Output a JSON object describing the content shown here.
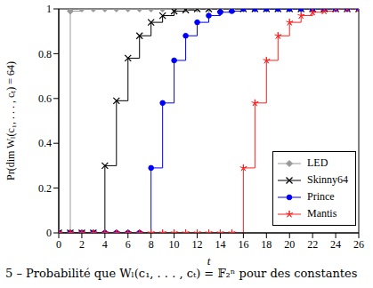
{
  "chart_data": {
    "type": "step",
    "x_label": "t",
    "y_label": "Pr(dim Wₗ(c₁, . . . , cₜ) = 64)",
    "annotations": [
      "5 – Probabilité que Wₗ(c₁, . . . , cₜ) = 𝔽₂ⁿ pour des constantes"
    ],
    "x": [
      0,
      1,
      2,
      3,
      4,
      5,
      6,
      7,
      8,
      9,
      10,
      11,
      12,
      13,
      14,
      15,
      16,
      17,
      18,
      19,
      20,
      21,
      22,
      23,
      24,
      25,
      26
    ],
    "series": [
      {
        "name": "LED",
        "color": "#999999",
        "marker": "diamond",
        "values": [
          0,
          0.99,
          1,
          1,
          1,
          1,
          1,
          1,
          1,
          1,
          1,
          1,
          1,
          1,
          1,
          1,
          1,
          1,
          1,
          1,
          1,
          1,
          1,
          1,
          1,
          1,
          1
        ]
      },
      {
        "name": "Skinny64",
        "color": "#000000",
        "marker": "x",
        "values": [
          0,
          0,
          0,
          0,
          0.3,
          0.59,
          0.78,
          0.88,
          0.94,
          0.97,
          0.99,
          0.995,
          1,
          1,
          1,
          1,
          1,
          1,
          1,
          1,
          1,
          1,
          1,
          1,
          1,
          1,
          1
        ]
      },
      {
        "name": "Prince",
        "color": "#0000ff",
        "marker": "circle",
        "values": [
          0,
          0,
          0,
          0,
          0,
          0,
          0,
          0,
          0.29,
          0.58,
          0.77,
          0.88,
          0.94,
          0.97,
          0.985,
          0.99,
          1,
          1,
          1,
          1,
          1,
          1,
          1,
          1,
          1,
          1,
          1
        ]
      },
      {
        "name": "Mantis",
        "color": "#ff2020",
        "marker": "star",
        "values": [
          0,
          0,
          0,
          0,
          0,
          0,
          0,
          0,
          0,
          0,
          0,
          0,
          0,
          0,
          0,
          0,
          0.29,
          0.58,
          0.77,
          0.88,
          0.94,
          0.97,
          0.985,
          0.99,
          1,
          1,
          1
        ]
      }
    ],
    "xlim": [
      0,
      26
    ],
    "ylim": [
      0,
      1
    ],
    "xticks": [
      0,
      2,
      4,
      6,
      8,
      10,
      12,
      14,
      16,
      18,
      20,
      22,
      24,
      26
    ],
    "yticks": [
      0,
      0.2,
      0.4,
      0.6,
      0.8,
      1
    ],
    "legend": "lower right"
  }
}
